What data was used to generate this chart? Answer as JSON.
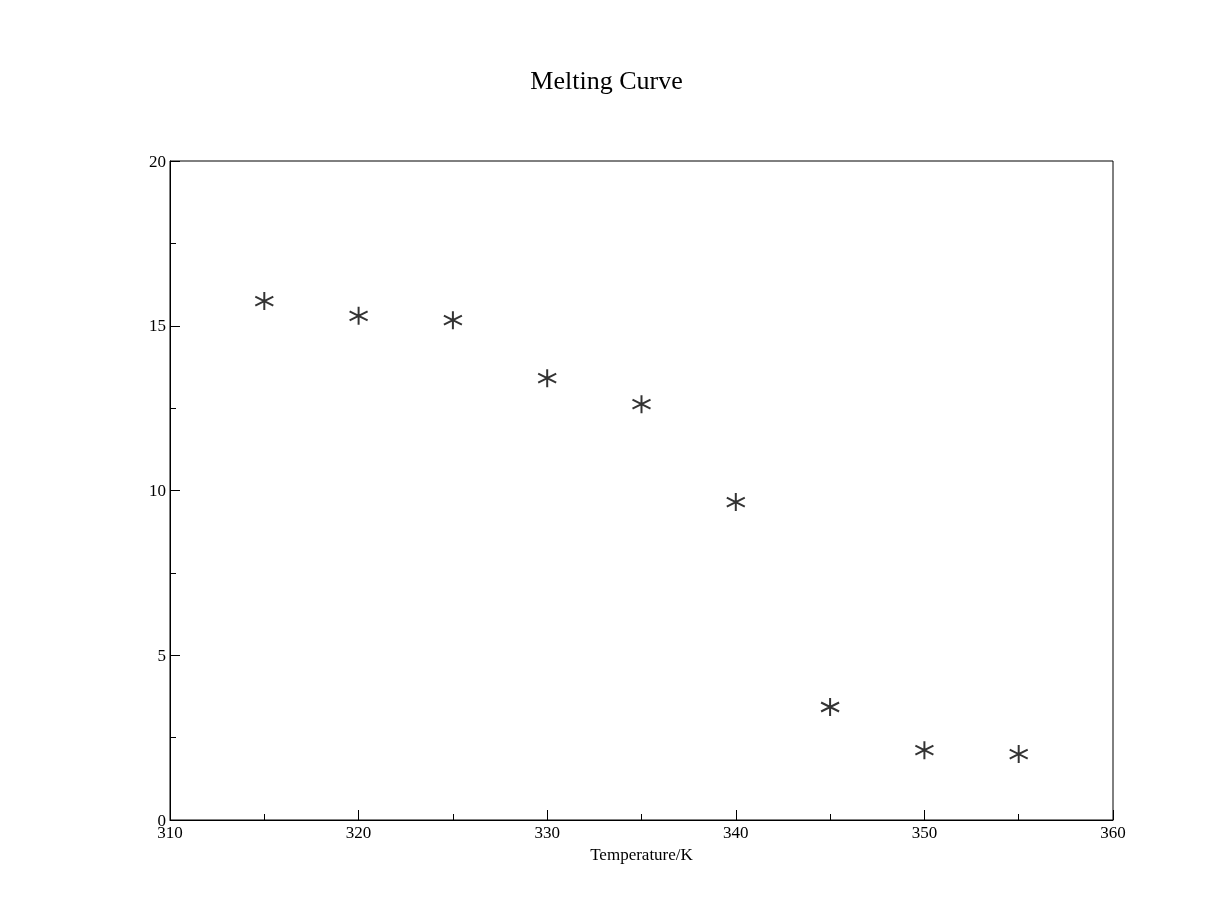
{
  "chart_data": {
    "type": "scatter",
    "title": "Melting Curve",
    "xlabel": "Temperature/K",
    "x": [
      315,
      320,
      325,
      330,
      335,
      340,
      345,
      350,
      355
    ],
    "series": [
      {
        "color": "#000000",
        "values": [
          15.75,
          15.3,
          15.17,
          13.41,
          12.62,
          9.65,
          3.43,
          2.12,
          2.0
        ]
      }
    ],
    "xlim": [
      310,
      360
    ],
    "xticks": [
      310,
      320,
      330,
      340,
      350,
      360
    ],
    "ylim": [
      0,
      20
    ],
    "yticks": [
      0,
      5,
      10,
      15,
      20
    ],
    "grid": false,
    "marker": "cross"
  }
}
